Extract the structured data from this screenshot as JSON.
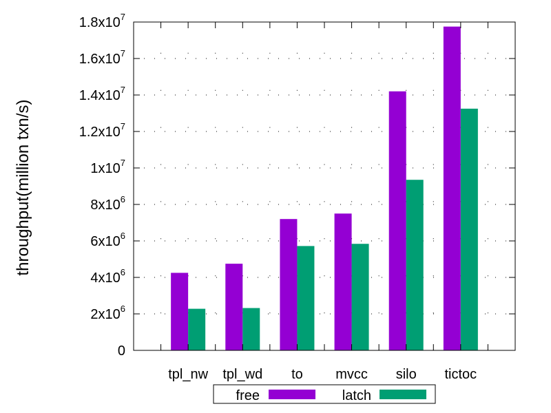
{
  "chart_data": {
    "type": "bar",
    "title": "",
    "xlabel": "",
    "ylabel": "throughput(million txn/s)",
    "categories": [
      "tpl_nw",
      "tpl_wd",
      "to",
      "mvcc",
      "silo",
      "tictoc"
    ],
    "series": [
      {
        "name": "free",
        "color": "#9400D3",
        "values": [
          4250000,
          4750000,
          7200000,
          7500000,
          14200000,
          17750000
        ]
      },
      {
        "name": "latch",
        "color": "#009E73",
        "values": [
          2280000,
          2320000,
          5720000,
          5840000,
          9350000,
          13250000
        ]
      }
    ],
    "ylim": [
      0,
      18000000
    ],
    "yticks": [
      {
        "value": 0,
        "base": "0",
        "exp": ""
      },
      {
        "value": 2000000,
        "base": "2x10",
        "exp": "6"
      },
      {
        "value": 4000000,
        "base": "4x10",
        "exp": "6"
      },
      {
        "value": 6000000,
        "base": "6x10",
        "exp": "6"
      },
      {
        "value": 8000000,
        "base": "8x10",
        "exp": "6"
      },
      {
        "value": 10000000,
        "base": "1x10",
        "exp": "7"
      },
      {
        "value": 12000000,
        "base": "1.2x10",
        "exp": "7"
      },
      {
        "value": 14000000,
        "base": "1.4x10",
        "exp": "7"
      },
      {
        "value": 16000000,
        "base": "1.6x10",
        "exp": "7"
      },
      {
        "value": 18000000,
        "base": "1.8x10",
        "exp": "7"
      }
    ],
    "grid": true,
    "legend_position": "bottom"
  }
}
